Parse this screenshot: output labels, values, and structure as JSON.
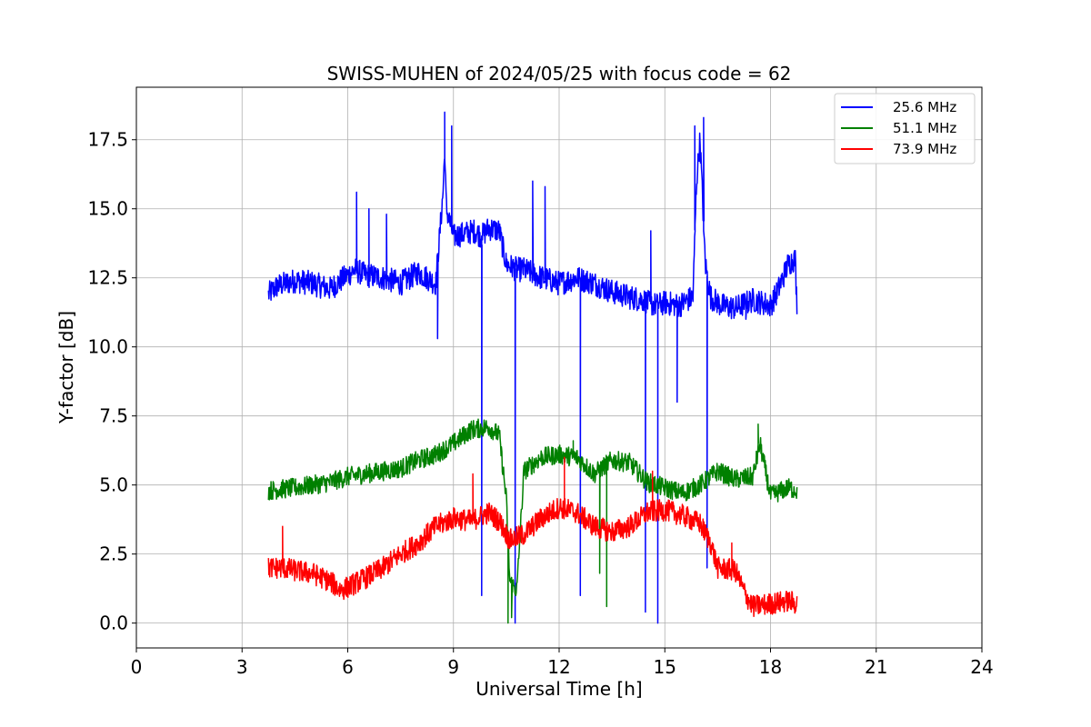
{
  "chart_data": {
    "type": "line",
    "title": "SWISS-MUHEN of 2024/05/25 with focus code = 62",
    "xlabel": "Universal Time [h]",
    "ylabel": "Y-factor [dB]",
    "xlim": [
      0,
      24
    ],
    "ylim": [
      -0.9,
      19.4
    ],
    "xticks": [
      0,
      3,
      6,
      9,
      12,
      15,
      18,
      21,
      24
    ],
    "xtick_labels": [
      "0",
      "3",
      "6",
      "9",
      "12",
      "15",
      "18",
      "21",
      "24"
    ],
    "yticks": [
      0,
      2.5,
      5,
      7.5,
      10,
      12.5,
      15,
      17.5
    ],
    "ytick_labels": [
      "0.0",
      "2.5",
      "5.0",
      "7.5",
      "10.0",
      "12.5",
      "15.0",
      "17.5"
    ],
    "grid": true,
    "legend_position": "top-right",
    "series": [
      {
        "name": "25.6 MHz",
        "color": "#0000ff",
        "noise": 0.45,
        "x": [
          3.75,
          4.0,
          4.5,
          5.0,
          5.5,
          5.9,
          6.2,
          6.5,
          7.0,
          7.5,
          8.0,
          8.5,
          8.7,
          8.75,
          8.8,
          9.0,
          9.3,
          9.6,
          9.8,
          10.0,
          10.3,
          10.5,
          10.8,
          11.0,
          11.5,
          12.0,
          12.5,
          13.0,
          13.5,
          14.0,
          14.4,
          14.5,
          14.8,
          15.0,
          15.4,
          15.8,
          15.9,
          16.0,
          16.15,
          16.3,
          16.6,
          17.0,
          17.5,
          18.0,
          18.2,
          18.5,
          18.7,
          18.75
        ],
        "y": [
          11.9,
          12.2,
          12.4,
          12.3,
          12.1,
          12.5,
          12.8,
          12.6,
          12.5,
          12.3,
          12.7,
          12.3,
          15.5,
          17.0,
          15.0,
          14.0,
          14.1,
          14.2,
          14.0,
          14.3,
          14.2,
          13.0,
          12.8,
          12.8,
          12.5,
          12.3,
          12.5,
          12.3,
          12.0,
          11.8,
          11.7,
          11.6,
          11.5,
          11.6,
          11.5,
          11.8,
          16.0,
          17.5,
          13.0,
          11.8,
          11.5,
          11.4,
          11.7,
          11.5,
          12.0,
          13.0,
          13.2,
          11.5
        ],
        "spikes": [
          [
            6.25,
            15.6
          ],
          [
            6.6,
            15.0
          ],
          [
            7.1,
            14.8
          ],
          [
            8.55,
            10.3
          ],
          [
            8.75,
            18.5
          ],
          [
            8.95,
            18.0
          ],
          [
            9.8,
            1.0
          ],
          [
            10.75,
            0.0
          ],
          [
            11.25,
            16.0
          ],
          [
            11.6,
            15.8
          ],
          [
            12.6,
            1.0
          ],
          [
            14.45,
            0.4
          ],
          [
            14.6,
            14.2
          ],
          [
            14.8,
            0.0
          ],
          [
            15.35,
            8.0
          ],
          [
            15.85,
            18.0
          ],
          [
            16.1,
            18.3
          ],
          [
            16.2,
            2.0
          ],
          [
            17.3,
            11.0
          ]
        ]
      },
      {
        "name": "51.1 MHz",
        "color": "#008000",
        "noise": 0.35,
        "x": [
          3.75,
          4.5,
          5.0,
          5.5,
          6.0,
          6.5,
          7.0,
          7.5,
          8.0,
          8.5,
          9.0,
          9.5,
          10.0,
          10.3,
          10.5,
          10.6,
          10.8,
          11.0,
          11.5,
          12.0,
          12.5,
          13.0,
          13.5,
          14.0,
          14.5,
          15.0,
          15.5,
          16.0,
          16.5,
          17.0,
          17.5,
          17.7,
          18.0,
          18.5,
          18.75
        ],
        "y": [
          4.8,
          4.9,
          5.0,
          5.1,
          5.3,
          5.4,
          5.5,
          5.6,
          5.9,
          6.1,
          6.5,
          7.0,
          7.1,
          6.8,
          4.5,
          1.5,
          1.2,
          5.5,
          6.0,
          6.1,
          6.0,
          5.4,
          5.9,
          5.8,
          5.1,
          4.9,
          4.7,
          5.0,
          5.5,
          5.2,
          5.3,
          6.5,
          4.6,
          4.9,
          4.8
        ],
        "spikes": [
          [
            10.55,
            0.0
          ],
          [
            10.65,
            0.2
          ],
          [
            13.35,
            0.6
          ],
          [
            13.15,
            1.8
          ],
          [
            17.65,
            7.2
          ],
          [
            12.4,
            6.6
          ]
        ]
      },
      {
        "name": "73.9 MHz",
        "color": "#ff0000",
        "noise": 0.4,
        "x": [
          3.75,
          4.2,
          4.5,
          5.0,
          5.5,
          5.8,
          6.0,
          6.3,
          6.6,
          7.0,
          7.5,
          8.0,
          8.5,
          9.0,
          9.5,
          10.0,
          10.3,
          10.6,
          11.0,
          11.5,
          12.0,
          12.5,
          13.0,
          13.5,
          14.0,
          14.5,
          15.0,
          15.5,
          16.0,
          16.3,
          16.5,
          17.0,
          17.3,
          17.5,
          18.0,
          18.5,
          18.75
        ],
        "y": [
          2.0,
          2.0,
          1.9,
          1.8,
          1.5,
          1.2,
          1.3,
          1.5,
          1.7,
          2.0,
          2.5,
          2.9,
          3.5,
          3.8,
          3.7,
          4.0,
          3.7,
          3.0,
          3.2,
          3.8,
          4.2,
          4.0,
          3.5,
          3.3,
          3.5,
          4.0,
          4.1,
          3.9,
          3.6,
          2.9,
          2.0,
          1.9,
          1.0,
          0.6,
          0.7,
          0.8,
          0.7
        ],
        "spikes": [
          [
            4.15,
            3.5
          ],
          [
            9.55,
            5.4
          ],
          [
            12.15,
            6.0
          ],
          [
            14.65,
            5.5
          ],
          [
            16.9,
            2.9
          ]
        ]
      }
    ]
  }
}
